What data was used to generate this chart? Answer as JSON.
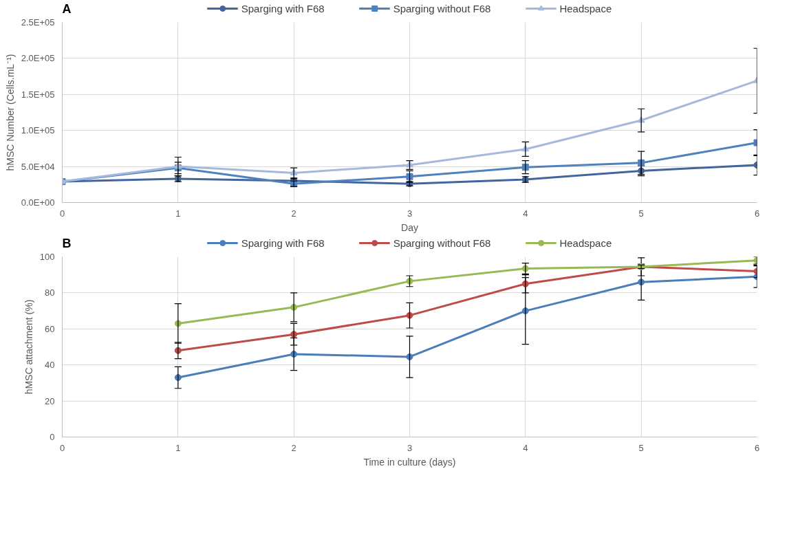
{
  "chart_data": [
    {
      "type": "line",
      "title": "A",
      "xlabel": "Day",
      "ylabel": "hMSC Number (Cells.mL⁻¹)",
      "x": [
        0,
        1,
        2,
        3,
        4,
        5,
        6
      ],
      "xlim": [
        0,
        6
      ],
      "xticks": [
        0,
        1,
        2,
        3,
        4,
        5,
        6
      ],
      "ylim": [
        0,
        250000
      ],
      "yticks": [
        {
          "value": 0,
          "label": "0.0E+00"
        },
        {
          "value": 50000,
          "label": "5.0E+04"
        },
        {
          "value": 100000,
          "label": "1.0E+05"
        },
        {
          "value": 150000,
          "label": "1.5E+05"
        },
        {
          "value": 200000,
          "label": "2.0E+05"
        },
        {
          "value": 250000,
          "label": "2.5E+05"
        }
      ],
      "grid": true,
      "legend": "top",
      "line_style": "solid",
      "series": [
        {
          "name": "Sparging with F68",
          "color": "#41659c",
          "marker": "circle",
          "values": [
            29000,
            33000,
            30000,
            26000,
            32000,
            44000,
            52000
          ],
          "errors": [
            null,
            4000,
            3000,
            3000,
            4000,
            7000,
            14000
          ]
        },
        {
          "name": "Sparging without F68",
          "color": "#4f81bd",
          "marker": "square",
          "values": [
            29000,
            48000,
            26000,
            36000,
            49000,
            55000,
            83000
          ],
          "errors": [
            null,
            8000,
            4000,
            8000,
            9000,
            16000,
            18000
          ]
        },
        {
          "name": "Headspace",
          "color": "#a5b9dc",
          "marker": "triangle",
          "values": [
            29000,
            50000,
            41000,
            52000,
            74000,
            114000,
            169000
          ],
          "errors": [
            null,
            13000,
            7000,
            6000,
            10000,
            16000,
            45000
          ]
        }
      ]
    },
    {
      "type": "line",
      "title": "B",
      "xlabel": "Time in culture (days)",
      "ylabel": "hMSC attachment (%)",
      "x": [
        1,
        2,
        3,
        4,
        5,
        6
      ],
      "xlim": [
        0,
        6
      ],
      "xticks": [
        0,
        1,
        2,
        3,
        4,
        5,
        6
      ],
      "ylim": [
        0,
        100
      ],
      "yticks": [
        0,
        20,
        40,
        60,
        80,
        100
      ],
      "grid": true,
      "legend": "top",
      "line_style": "solid",
      "marker": "circle",
      "series": [
        {
          "name": "Sparging with F68",
          "color": "#4a7ebb",
          "values": [
            33,
            46,
            44.5,
            70,
            86,
            89
          ],
          "errors": [
            6,
            9,
            11.5,
            18.5,
            10,
            6
          ]
        },
        {
          "name": "Sparging without F68",
          "color": "#be4b48",
          "values": [
            48,
            57,
            67.5,
            85,
            94.5,
            92
          ],
          "errors": [
            4.5,
            6,
            7,
            5,
            5,
            3.5
          ]
        },
        {
          "name": "Headspace",
          "color": "#98b954",
          "values": [
            63,
            72,
            86.5,
            93.5,
            94.5,
            98
          ],
          "errors": [
            11,
            8,
            3,
            3,
            1,
            2
          ]
        }
      ]
    }
  ]
}
